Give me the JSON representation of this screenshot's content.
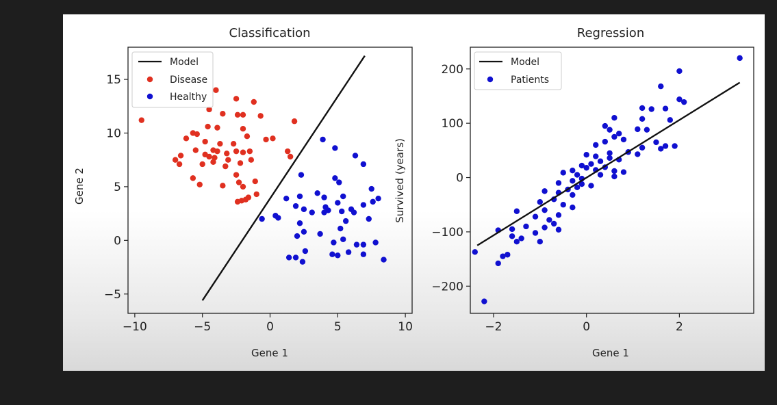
{
  "chart_data": [
    {
      "type": "scatter",
      "title": "Classification",
      "xlabel": "Gene 1",
      "ylabel": "Gene 2",
      "xlim": [
        -10.5,
        10.5
      ],
      "ylim": [
        -6.8,
        18.0
      ],
      "xticks": [
        -10,
        -5,
        0,
        5,
        10
      ],
      "xtick_labels": [
        "−10",
        "−5",
        "0",
        "5",
        "10"
      ],
      "yticks": [
        -5,
        0,
        5,
        10,
        15
      ],
      "ytick_labels": [
        "−5",
        "0",
        "5",
        "10",
        "15"
      ],
      "legend": {
        "placement": "upper-left",
        "entries": [
          "Model",
          "Disease",
          "Healthy"
        ]
      },
      "grid": false,
      "model_line": {
        "name": "Model",
        "color": "#111111",
        "x": [
          -5.0,
          7.0
        ],
        "y": [
          -5.6,
          17.2
        ]
      },
      "series": [
        {
          "name": "Disease",
          "color": "#e03020",
          "points": [
            [
              -9.5,
              11.2
            ],
            [
              -4.0,
              14.0
            ],
            [
              -2.5,
              13.2
            ],
            [
              -1.2,
              12.9
            ],
            [
              -4.5,
              12.2
            ],
            [
              -3.5,
              11.8
            ],
            [
              -2.4,
              11.7
            ],
            [
              -2.0,
              11.7
            ],
            [
              -0.7,
              11.6
            ],
            [
              1.8,
              11.1
            ],
            [
              -4.6,
              10.6
            ],
            [
              -3.9,
              10.5
            ],
            [
              -2.0,
              10.4
            ],
            [
              -5.7,
              10.0
            ],
            [
              -5.4,
              9.9
            ],
            [
              -6.2,
              9.5
            ],
            [
              -1.7,
              9.7
            ],
            [
              0.2,
              9.5
            ],
            [
              -0.3,
              9.4
            ],
            [
              -4.8,
              9.2
            ],
            [
              -3.7,
              9.0
            ],
            [
              -2.7,
              9.0
            ],
            [
              -5.5,
              8.4
            ],
            [
              -4.2,
              8.4
            ],
            [
              -3.9,
              8.3
            ],
            [
              -3.2,
              8.1
            ],
            [
              -2.5,
              8.3
            ],
            [
              -2.0,
              8.2
            ],
            [
              -1.5,
              8.3
            ],
            [
              1.3,
              8.3
            ],
            [
              -4.8,
              8.0
            ],
            [
              -4.5,
              7.8
            ],
            [
              -6.6,
              7.9
            ],
            [
              -7.0,
              7.5
            ],
            [
              -4.1,
              7.7
            ],
            [
              -3.1,
              7.5
            ],
            [
              -1.4,
              7.5
            ],
            [
              1.5,
              7.8
            ],
            [
              -5.0,
              7.1
            ],
            [
              -4.2,
              7.3
            ],
            [
              -6.7,
              7.1
            ],
            [
              -2.2,
              7.2
            ],
            [
              -3.3,
              6.9
            ],
            [
              -2.5,
              6.1
            ],
            [
              -5.7,
              5.8
            ],
            [
              -2.3,
              5.4
            ],
            [
              -1.1,
              5.5
            ],
            [
              -5.2,
              5.2
            ],
            [
              -3.5,
              5.1
            ],
            [
              -2.0,
              5.0
            ],
            [
              -1.0,
              4.3
            ],
            [
              -1.6,
              4.0
            ],
            [
              -1.8,
              3.8
            ],
            [
              -2.1,
              3.7
            ],
            [
              -2.4,
              3.6
            ]
          ]
        },
        {
          "name": "Healthy",
          "color": "#1010d0",
          "points": [
            [
              3.9,
              9.4
            ],
            [
              4.8,
              8.6
            ],
            [
              6.3,
              7.9
            ],
            [
              6.9,
              7.1
            ],
            [
              2.3,
              6.1
            ],
            [
              4.8,
              5.8
            ],
            [
              5.1,
              5.4
            ],
            [
              7.5,
              4.8
            ],
            [
              3.5,
              4.4
            ],
            [
              4.0,
              4.0
            ],
            [
              7.6,
              3.6
            ],
            [
              2.2,
              4.1
            ],
            [
              5.4,
              4.1
            ],
            [
              8.0,
              3.9
            ],
            [
              1.2,
              3.9
            ],
            [
              5.0,
              3.5
            ],
            [
              6.9,
              3.3
            ],
            [
              6.0,
              2.9
            ],
            [
              4.1,
              3.1
            ],
            [
              1.9,
              3.2
            ],
            [
              2.5,
              2.9
            ],
            [
              4.3,
              2.8
            ],
            [
              4.0,
              2.6
            ],
            [
              5.3,
              2.7
            ],
            [
              3.1,
              2.6
            ],
            [
              6.2,
              2.6
            ],
            [
              0.4,
              2.3
            ],
            [
              0.6,
              2.1
            ],
            [
              7.3,
              2.0
            ],
            [
              -0.6,
              2.0
            ],
            [
              2.2,
              1.6
            ],
            [
              5.6,
              1.8
            ],
            [
              5.2,
              1.1
            ],
            [
              3.7,
              0.6
            ],
            [
              2.5,
              0.8
            ],
            [
              5.4,
              0.1
            ],
            [
              2.0,
              0.4
            ],
            [
              6.4,
              -0.4
            ],
            [
              4.7,
              -0.2
            ],
            [
              7.8,
              -0.2
            ],
            [
              6.9,
              -0.4
            ],
            [
              5.8,
              -1.1
            ],
            [
              4.6,
              -1.3
            ],
            [
              1.9,
              -1.6
            ],
            [
              2.6,
              -1.0
            ],
            [
              5.0,
              -1.4
            ],
            [
              6.9,
              -1.3
            ],
            [
              8.4,
              -1.8
            ],
            [
              1.4,
              -1.6
            ],
            [
              2.4,
              -2.0
            ]
          ]
        }
      ]
    },
    {
      "type": "scatter",
      "title": "Regression",
      "xlabel": "Gene 1",
      "ylabel": "Survived (years)",
      "xlim": [
        -2.5,
        3.6
      ],
      "ylim": [
        -250,
        240
      ],
      "xticks": [
        -2,
        0,
        2
      ],
      "xtick_labels": [
        "−2",
        "0",
        "2"
      ],
      "yticks": [
        -200,
        -100,
        0,
        100,
        200
      ],
      "ytick_labels": [
        "−200",
        "−100",
        "0",
        "100",
        "200"
      ],
      "legend": {
        "placement": "upper-left",
        "entries": [
          "Model",
          "Patients"
        ]
      },
      "grid": false,
      "model_line": {
        "name": "Model",
        "color": "#111111",
        "x": [
          -2.35,
          3.3
        ],
        "y": [
          -125,
          175
        ]
      },
      "series": [
        {
          "name": "Patients",
          "color": "#1010d0",
          "points": [
            [
              3.3,
              220
            ],
            [
              2.0,
              196
            ],
            [
              1.6,
              168
            ],
            [
              2.0,
              144
            ],
            [
              2.1,
              139
            ],
            [
              1.2,
              128
            ],
            [
              1.7,
              127
            ],
            [
              1.4,
              126
            ],
            [
              0.6,
              110
            ],
            [
              1.2,
              108
            ],
            [
              1.8,
              106
            ],
            [
              0.4,
              95
            ],
            [
              0.5,
              88
            ],
            [
              0.7,
              81
            ],
            [
              1.3,
              88
            ],
            [
              1.1,
              89
            ],
            [
              0.8,
              70
            ],
            [
              0.6,
              75
            ],
            [
              0.4,
              66
            ],
            [
              1.5,
              65
            ],
            [
              0.2,
              60
            ],
            [
              1.7,
              58
            ],
            [
              1.9,
              58
            ],
            [
              1.2,
              55
            ],
            [
              1.6,
              53
            ],
            [
              0.9,
              47
            ],
            [
              1.1,
              43
            ],
            [
              0.5,
              45
            ],
            [
              0.0,
              42
            ],
            [
              0.2,
              39
            ],
            [
              0.5,
              36
            ],
            [
              0.3,
              30
            ],
            [
              0.7,
              33
            ],
            [
              0.1,
              25
            ],
            [
              -0.1,
              22
            ],
            [
              0.4,
              19
            ],
            [
              0.0,
              18
            ],
            [
              0.2,
              14
            ],
            [
              -0.3,
              13
            ],
            [
              0.6,
              12
            ],
            [
              0.8,
              10
            ],
            [
              -0.2,
              5
            ],
            [
              0.3,
              5
            ],
            [
              0.6,
              2
            ],
            [
              -0.5,
              9
            ],
            [
              -0.1,
              -2
            ],
            [
              -0.3,
              -6
            ],
            [
              -0.6,
              -10
            ],
            [
              -0.1,
              -12
            ],
            [
              0.1,
              -15
            ],
            [
              -0.2,
              -18
            ],
            [
              -0.4,
              -22
            ],
            [
              -0.9,
              -25
            ],
            [
              -0.6,
              -28
            ],
            [
              -0.3,
              -32
            ],
            [
              -0.7,
              -40
            ],
            [
              -1.0,
              -45
            ],
            [
              -0.5,
              -50
            ],
            [
              -0.3,
              -55
            ],
            [
              -0.9,
              -60
            ],
            [
              -1.5,
              -62
            ],
            [
              -0.6,
              -69
            ],
            [
              -1.1,
              -72
            ],
            [
              -0.8,
              -78
            ],
            [
              -0.7,
              -85
            ],
            [
              -1.3,
              -90
            ],
            [
              -0.9,
              -92
            ],
            [
              -1.6,
              -95
            ],
            [
              -1.9,
              -97
            ],
            [
              -0.6,
              -96
            ],
            [
              -1.1,
              -102
            ],
            [
              -1.6,
              -108
            ],
            [
              -1.4,
              -112
            ],
            [
              -1.5,
              -118
            ],
            [
              -1.0,
              -118
            ],
            [
              -1.7,
              -142
            ],
            [
              -1.8,
              -145
            ],
            [
              -1.9,
              -158
            ],
            [
              -2.4,
              -137
            ],
            [
              -2.2,
              -228
            ]
          ]
        }
      ]
    }
  ]
}
